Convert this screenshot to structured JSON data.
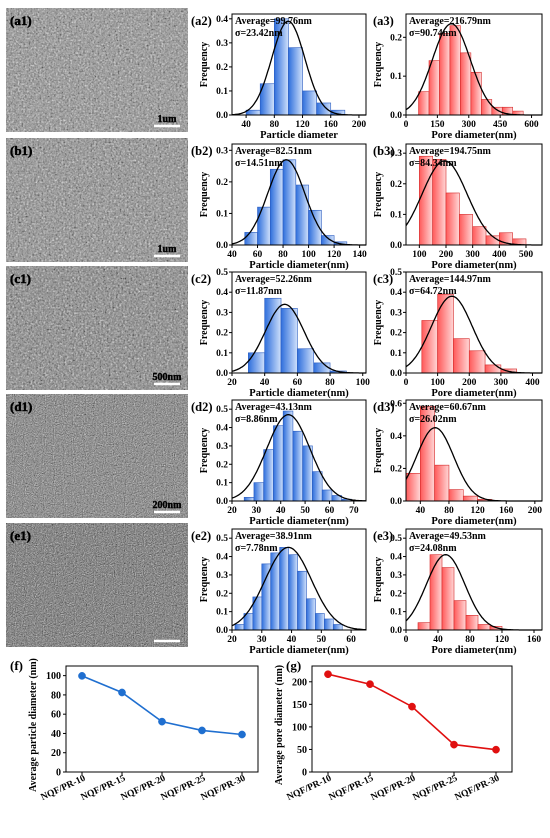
{
  "sem_images": [
    {
      "panel": "(a1)",
      "scalebar": "1um",
      "tone": "#8a8a8a"
    },
    {
      "panel": "(b1)",
      "scalebar": "1um",
      "tone": "#858585"
    },
    {
      "panel": "(c1)",
      "scalebar": "500nm",
      "tone": "#7a7a7a"
    },
    {
      "panel": "(d1)",
      "scalebar": "200nm",
      "tone": "#6f6f6f"
    },
    {
      "panel": "(e1)",
      "scalebar": "",
      "tone": "#5e5e5e"
    }
  ],
  "colors": {
    "particle_bar": "#6f9be0",
    "particle_bar_edge": "#2a5cc0",
    "pore_bar": "#f08a8a",
    "pore_bar_edge": "#d42a2a",
    "fit_line": "#000000",
    "particle_line": "#1f6fd0",
    "pore_line": "#e01010"
  },
  "chart_data": [
    {
      "panel": "(a2)",
      "type": "bar",
      "kind": "particle",
      "annotation": [
        "Average=99.76nm",
        "σ=23.42nm"
      ],
      "xlabel": "Particle diameter",
      "ylabel": "Frequency",
      "xlim": [
        20,
        210
      ],
      "xticks": [
        40,
        80,
        120,
        160,
        200
      ],
      "ylim": [
        0,
        0.42
      ],
      "yticks": [
        0.0,
        0.1,
        0.2,
        0.3,
        0.4
      ],
      "bins": [
        [
          40,
          60,
          0.02
        ],
        [
          60,
          80,
          0.13
        ],
        [
          80,
          100,
          0.4
        ],
        [
          100,
          120,
          0.28
        ],
        [
          120,
          140,
          0.1
        ],
        [
          140,
          160,
          0.05
        ],
        [
          160,
          180,
          0.02
        ]
      ],
      "fit": {
        "mean": 99.76,
        "sigma": 23.42,
        "peak": 0.39
      }
    },
    {
      "panel": "(a3)",
      "type": "bar",
      "kind": "pore",
      "annotation": [
        "Average=216.79nm",
        "σ=90.74nm"
      ],
      "xlabel": "Pore diameter(nm)",
      "ylabel": "Frequency",
      "xlim": [
        0,
        650
      ],
      "xticks": [
        0,
        150,
        300,
        450,
        600
      ],
      "ylim": [
        0,
        0.26
      ],
      "yticks": [
        0.0,
        0.1,
        0.2
      ],
      "bins": [
        [
          60,
          110,
          0.06
        ],
        [
          110,
          160,
          0.14
        ],
        [
          160,
          210,
          0.21
        ],
        [
          210,
          260,
          0.23
        ],
        [
          260,
          310,
          0.16
        ],
        [
          310,
          360,
          0.11
        ],
        [
          360,
          410,
          0.04
        ],
        [
          410,
          460,
          0.02
        ],
        [
          460,
          510,
          0.02
        ],
        [
          510,
          560,
          0.01
        ]
      ],
      "fit": {
        "mean": 216.79,
        "sigma": 90.74,
        "peak": 0.235
      }
    },
    {
      "panel": "(b2)",
      "type": "bar",
      "kind": "particle",
      "annotation": [
        "Average=82.51nm",
        "σ=14.51nm"
      ],
      "xlabel": "Particle diameter(nm)",
      "ylabel": "Frequency",
      "xlim": [
        40,
        145
      ],
      "xticks": [
        40,
        60,
        80,
        100,
        120,
        140
      ],
      "ylim": [
        0,
        0.32
      ],
      "yticks": [
        0.0,
        0.1,
        0.2,
        0.3
      ],
      "bins": [
        [
          50,
          60,
          0.04
        ],
        [
          60,
          70,
          0.12
        ],
        [
          70,
          80,
          0.24
        ],
        [
          80,
          90,
          0.27
        ],
        [
          90,
          100,
          0.19
        ],
        [
          100,
          110,
          0.11
        ],
        [
          110,
          120,
          0.03
        ],
        [
          120,
          130,
          0.01
        ]
      ],
      "fit": {
        "mean": 82.51,
        "sigma": 14.51,
        "peak": 0.27
      }
    },
    {
      "panel": "(b3)",
      "type": "bar",
      "kind": "pore",
      "annotation": [
        "Average=194.75nm",
        "σ=84.34nm"
      ],
      "xlabel": "Pore diameter(nm)",
      "ylabel": "Frequency",
      "xlim": [
        50,
        560
      ],
      "xticks": [
        100,
        200,
        300,
        400,
        500
      ],
      "ylim": [
        0,
        0.33
      ],
      "yticks": [
        0.0,
        0.1,
        0.2,
        0.3
      ],
      "bins": [
        [
          100,
          150,
          0.29
        ],
        [
          150,
          200,
          0.28
        ],
        [
          200,
          250,
          0.17
        ],
        [
          250,
          300,
          0.1
        ],
        [
          300,
          350,
          0.06
        ],
        [
          350,
          400,
          0.03
        ],
        [
          400,
          450,
          0.04
        ],
        [
          450,
          500,
          0.02
        ]
      ],
      "fit": {
        "mean": 194.75,
        "sigma": 84.34,
        "peak": 0.275
      }
    },
    {
      "panel": "(c2)",
      "type": "bar",
      "kind": "particle",
      "annotation": [
        "Average=52.26nm",
        "σ=11.87nm"
      ],
      "xlabel": "Particle diameter(nm)",
      "ylabel": "Frequency",
      "xlim": [
        20,
        102
      ],
      "xticks": [
        20,
        40,
        60,
        80,
        100
      ],
      "ylim": [
        0,
        0.5
      ],
      "yticks": [
        0.0,
        0.1,
        0.2,
        0.3,
        0.4,
        0.5
      ],
      "bins": [
        [
          30,
          40,
          0.1
        ],
        [
          40,
          50,
          0.37
        ],
        [
          50,
          60,
          0.32
        ],
        [
          60,
          70,
          0.12
        ],
        [
          70,
          80,
          0.05
        ],
        [
          80,
          90,
          0.01
        ]
      ],
      "fit": {
        "mean": 52.26,
        "sigma": 11.87,
        "peak": 0.34
      }
    },
    {
      "panel": "(c3)",
      "type": "bar",
      "kind": "pore",
      "annotation": [
        "Average=144.97nm",
        "σ=64.72nm"
      ],
      "xlabel": "Pore diameter(nm)",
      "ylabel": "Frequency",
      "xlim": [
        0,
        430
      ],
      "xticks": [
        0,
        100,
        200,
        300,
        400
      ],
      "ylim": [
        0,
        0.5
      ],
      "yticks": [
        0.0,
        0.1,
        0.2,
        0.3,
        0.4,
        0.5
      ],
      "bins": [
        [
          50,
          100,
          0.26
        ],
        [
          100,
          150,
          0.39
        ],
        [
          150,
          200,
          0.17
        ],
        [
          200,
          250,
          0.11
        ],
        [
          250,
          300,
          0.04
        ],
        [
          300,
          350,
          0.02
        ]
      ],
      "fit": {
        "mean": 144.97,
        "sigma": 64.72,
        "peak": 0.38
      }
    },
    {
      "panel": "(d2)",
      "type": "bar",
      "kind": "particle",
      "annotation": [
        "Average=43.13nm",
        "σ=8.86nm"
      ],
      "xlabel": "Particle diameter(nm)",
      "ylabel": "Frequency",
      "xlim": [
        20,
        75
      ],
      "xticks": [
        20,
        30,
        40,
        50,
        60,
        70
      ],
      "ylim": [
        0,
        0.55
      ],
      "yticks": [
        0.0,
        0.1,
        0.2,
        0.3,
        0.4,
        0.5
      ],
      "bins": [
        [
          25,
          29,
          0.02
        ],
        [
          29,
          33,
          0.1
        ],
        [
          33,
          37,
          0.28
        ],
        [
          37,
          41,
          0.41
        ],
        [
          41,
          45,
          0.49
        ],
        [
          45,
          49,
          0.38
        ],
        [
          49,
          53,
          0.3
        ],
        [
          53,
          57,
          0.16
        ],
        [
          57,
          61,
          0.06
        ],
        [
          61,
          65,
          0.03
        ],
        [
          65,
          69,
          0.01
        ]
      ],
      "fit": {
        "mean": 43.13,
        "sigma": 8.86,
        "peak": 0.47
      }
    },
    {
      "panel": "(d3)",
      "type": "bar",
      "kind": "pore",
      "annotation": [
        "Average=60.67nm",
        "σ=26.02nm"
      ],
      "xlabel": "Pore diameter(nm)",
      "ylabel": "Frequency",
      "xlim": [
        20,
        210
      ],
      "xticks": [
        40,
        80,
        120,
        160,
        200
      ],
      "ylim": [
        0,
        0.62
      ],
      "yticks": [
        0.0,
        0.2,
        0.4,
        0.6
      ],
      "bins": [
        [
          20,
          40,
          0.17
        ],
        [
          40,
          60,
          0.58
        ],
        [
          60,
          80,
          0.22
        ],
        [
          80,
          100,
          0.07
        ],
        [
          100,
          120,
          0.03
        ],
        [
          120,
          140,
          0.01
        ]
      ],
      "fit": {
        "mean": 60.67,
        "sigma": 26.02,
        "peak": 0.45
      }
    },
    {
      "panel": "(e2)",
      "type": "bar",
      "kind": "particle",
      "annotation": [
        "Average=38.91nm",
        "σ=7.78nm"
      ],
      "xlabel": "Particle diameter(nm)",
      "ylabel": "Frequency",
      "xlim": [
        20,
        65
      ],
      "xticks": [
        20,
        30,
        40,
        50,
        60
      ],
      "ylim": [
        0,
        0.55
      ],
      "yticks": [
        0.0,
        0.1,
        0.2,
        0.3,
        0.4,
        0.5
      ],
      "bins": [
        [
          21,
          24,
          0.03
        ],
        [
          24,
          27,
          0.09
        ],
        [
          27,
          30,
          0.18
        ],
        [
          30,
          33,
          0.36
        ],
        [
          33,
          36,
          0.42
        ],
        [
          36,
          39,
          0.45
        ],
        [
          39,
          42,
          0.41
        ],
        [
          42,
          45,
          0.32
        ],
        [
          45,
          48,
          0.17
        ],
        [
          48,
          51,
          0.09
        ],
        [
          51,
          54,
          0.06
        ],
        [
          54,
          57,
          0.03
        ]
      ],
      "fit": {
        "mean": 38.91,
        "sigma": 7.78,
        "peak": 0.45
      }
    },
    {
      "panel": "(e3)",
      "type": "bar",
      "kind": "pore",
      "annotation": [
        "Average=49.53nm",
        "σ=24.08nm"
      ],
      "xlabel": "Pore diameter(nm)",
      "ylabel": "Frequency",
      "xlim": [
        0,
        170
      ],
      "xticks": [
        0,
        40,
        80,
        120,
        160
      ],
      "ylim": [
        0,
        0.55
      ],
      "yticks": [
        0.0,
        0.1,
        0.2,
        0.3,
        0.4,
        0.5
      ],
      "bins": [
        [
          15,
          30,
          0.04
        ],
        [
          30,
          45,
          0.41
        ],
        [
          45,
          60,
          0.34
        ],
        [
          60,
          75,
          0.16
        ],
        [
          75,
          90,
          0.08
        ],
        [
          90,
          105,
          0.03
        ],
        [
          105,
          120,
          0.02
        ]
      ],
      "fit": {
        "mean": 49.53,
        "sigma": 24.08,
        "peak": 0.41
      }
    },
    {
      "panel": "(f)",
      "type": "line",
      "kind": "particle_summary",
      "categories": [
        "NQF/PR-10",
        "NQF/PR-15",
        "NQF/PR-20",
        "NQF/PR-25",
        "NQF/PR-30"
      ],
      "values": [
        99.76,
        82.51,
        52.26,
        43.13,
        38.91
      ],
      "ylabel": "Average particle diameter (nm)",
      "ylim": [
        0,
        110
      ],
      "yticks": [
        0,
        20,
        40,
        60,
        80,
        100
      ]
    },
    {
      "panel": "(g)",
      "type": "line",
      "kind": "pore_summary",
      "categories": [
        "NQF/PR-10",
        "NQF/PR-15",
        "NQF/PR-20",
        "NQF/PR-25",
        "NQF/PR-30"
      ],
      "values": [
        216.79,
        194.75,
        144.97,
        60.67,
        49.53
      ],
      "ylabel": "Average pore diameter (nm)",
      "ylim": [
        0,
        235
      ],
      "yticks": [
        0,
        50,
        100,
        150,
        200
      ]
    }
  ]
}
